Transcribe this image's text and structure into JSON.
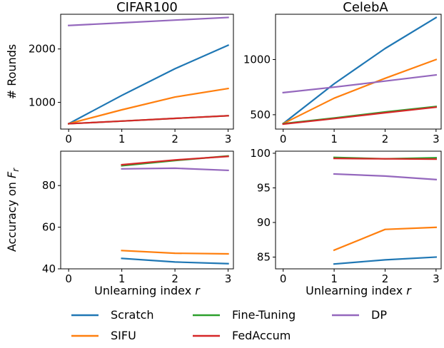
{
  "legend": {
    "entries": [
      {
        "name": "Scratch",
        "color": "#1f77b4"
      },
      {
        "name": "SIFU",
        "color": "#ff7f0e"
      },
      {
        "name": "Fine-Tuning",
        "color": "#2ca02c"
      },
      {
        "name": "FedAccum",
        "color": "#d62728"
      },
      {
        "name": "DP",
        "color": "#9467bd"
      }
    ],
    "placement": "bottom-center"
  },
  "chart_data": [
    {
      "type": "line",
      "title": "CIFAR100",
      "xlabel": "",
      "ylabel": "# Rounds",
      "xlim": [
        -0.15,
        3.1
      ],
      "ylim": [
        500,
        2650
      ],
      "x_ticks": [
        0,
        1,
        2,
        3
      ],
      "y_ticks": [
        1000,
        2000
      ],
      "grid": false,
      "series": [
        {
          "name": "Scratch",
          "x": [
            0,
            1,
            2,
            3
          ],
          "values": [
            600,
            1130,
            1630,
            2070
          ]
        },
        {
          "name": "SIFU",
          "x": [
            0,
            1,
            2,
            3
          ],
          "values": [
            600,
            860,
            1100,
            1260
          ]
        },
        {
          "name": "Fine-Tuning",
          "x": [
            0,
            1,
            2,
            3
          ],
          "values": [
            600,
            650,
            700,
            750
          ]
        },
        {
          "name": "FedAccum",
          "x": [
            0,
            1,
            2,
            3
          ],
          "values": [
            600,
            650,
            700,
            750
          ]
        },
        {
          "name": "DP",
          "x": [
            0,
            1,
            2,
            3
          ],
          "values": [
            2440,
            2490,
            2540,
            2590
          ]
        }
      ]
    },
    {
      "type": "line",
      "title": "CelebA",
      "xlabel": "",
      "ylabel": "",
      "xlim": [
        -0.15,
        3.1
      ],
      "ylim": [
        370,
        1410
      ],
      "x_ticks": [
        0,
        1,
        2,
        3
      ],
      "y_ticks": [
        500,
        1000
      ],
      "grid": false,
      "series": [
        {
          "name": "Scratch",
          "x": [
            0,
            1,
            2,
            3
          ],
          "values": [
            420,
            780,
            1100,
            1380
          ]
        },
        {
          "name": "SIFU",
          "x": [
            0,
            1,
            2,
            3
          ],
          "values": [
            420,
            650,
            830,
            1000
          ]
        },
        {
          "name": "Fine-Tuning",
          "x": [
            0,
            1,
            2,
            3
          ],
          "values": [
            420,
            470,
            525,
            575
          ]
        },
        {
          "name": "FedAccum",
          "x": [
            0,
            1,
            2,
            3
          ],
          "values": [
            415,
            465,
            518,
            568
          ]
        },
        {
          "name": "DP",
          "x": [
            0,
            1,
            2,
            3
          ],
          "values": [
            700,
            750,
            805,
            860
          ]
        }
      ]
    },
    {
      "type": "line",
      "title": "",
      "xlabel": "Unlearning index r",
      "ylabel": "Accuracy on F_r",
      "xlim": [
        -0.15,
        3.1
      ],
      "ylim": [
        40,
        96.5
      ],
      "x_ticks": [
        0,
        1,
        2,
        3
      ],
      "y_ticks": [
        40,
        60,
        80
      ],
      "grid": false,
      "series": [
        {
          "name": "Scratch",
          "x": [
            1,
            2,
            3
          ],
          "values": [
            45.0,
            43.3,
            42.5
          ]
        },
        {
          "name": "SIFU",
          "x": [
            1,
            2,
            3
          ],
          "values": [
            48.8,
            47.5,
            47.2
          ]
        },
        {
          "name": "Fine-Tuning",
          "x": [
            1,
            2,
            3
          ],
          "values": [
            89.5,
            92.0,
            94.2
          ]
        },
        {
          "name": "FedAccum",
          "x": [
            1,
            2,
            3
          ],
          "values": [
            90.0,
            92.3,
            94.0
          ]
        },
        {
          "name": "DP",
          "x": [
            1,
            2,
            3
          ],
          "values": [
            88.0,
            88.3,
            87.3
          ]
        }
      ]
    },
    {
      "type": "line",
      "title": "",
      "xlabel": "Unlearning index r",
      "ylabel": "",
      "xlim": [
        -0.15,
        3.1
      ],
      "ylim": [
        83.3,
        100.3
      ],
      "x_ticks": [
        0,
        1,
        2,
        3
      ],
      "y_ticks": [
        85,
        90,
        95,
        100
      ],
      "grid": false,
      "series": [
        {
          "name": "Scratch",
          "x": [
            1,
            2,
            3
          ],
          "values": [
            84.0,
            84.6,
            85.0
          ]
        },
        {
          "name": "SIFU",
          "x": [
            1,
            2,
            3
          ],
          "values": [
            86.0,
            89.0,
            89.3
          ]
        },
        {
          "name": "Fine-Tuning",
          "x": [
            1,
            2,
            3
          ],
          "values": [
            99.4,
            99.2,
            99.35
          ]
        },
        {
          "name": "FedAccum",
          "x": [
            1,
            2,
            3
          ],
          "values": [
            99.25,
            99.2,
            99.15
          ]
        },
        {
          "name": "DP",
          "x": [
            1,
            2,
            3
          ],
          "values": [
            97.0,
            96.7,
            96.2
          ]
        }
      ]
    }
  ]
}
